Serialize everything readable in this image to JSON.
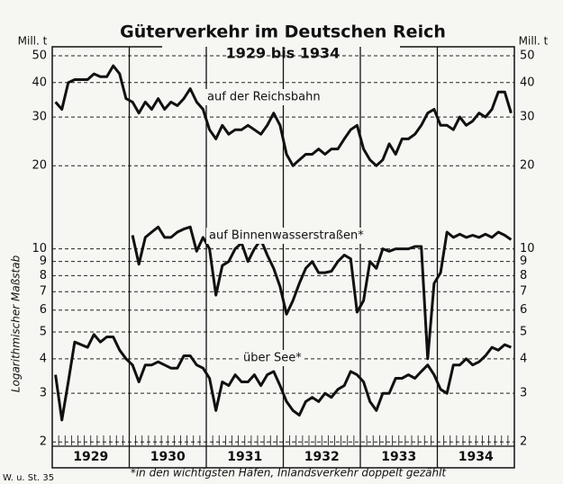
{
  "chart_data": {
    "type": "line",
    "title": "Güterverkehr im Deutschen Reich",
    "subtitle": "1929 bis 1934",
    "y_unit": "Mill. t",
    "y_label": "Logarithmischer Maßstab",
    "footnote": "*in den wichtigsten Häfen, Inlandsverkehr doppelt gezählt",
    "source": "W. u. St. 35",
    "year_labels": [
      "1929",
      "1930",
      "1931",
      "1932",
      "1933",
      "1934"
    ],
    "categories": [
      null,
      null,
      null,
      null,
      null,
      null,
      null,
      null,
      null,
      null,
      null,
      null,
      null,
      null,
      null,
      null,
      null,
      null,
      null,
      null,
      null,
      null,
      null,
      null,
      null,
      null,
      null,
      null,
      null,
      null,
      null,
      null,
      null,
      null,
      null,
      null,
      null,
      null,
      null,
      null,
      null,
      null,
      null,
      null,
      null,
      null,
      null,
      null,
      null,
      null,
      null,
      null,
      null,
      null,
      null,
      null,
      null,
      null,
      null,
      null,
      null,
      null,
      null,
      null,
      null,
      null,
      null,
      null,
      null,
      null,
      null,
      null
    ],
    "log_scale": true,
    "grid": true,
    "ylim": [
      1.93,
      50
    ],
    "yticks": [
      2,
      3,
      4,
      5,
      6,
      7,
      8,
      9,
      10,
      20,
      30,
      40,
      50
    ],
    "series": [
      {
        "name": "auf der Reichsbahn",
        "color": "#111111",
        "values": [
          34,
          32,
          40,
          41,
          41,
          41,
          43,
          42,
          42,
          46,
          43,
          35,
          34,
          31,
          34,
          32,
          35,
          32,
          34,
          33,
          35,
          38,
          34,
          32,
          27,
          25,
          28,
          26,
          27,
          27,
          28,
          27,
          26,
          28,
          31,
          28,
          22,
          20,
          21,
          22,
          22,
          23,
          22,
          23,
          23,
          25,
          27,
          28,
          23,
          21,
          20,
          21,
          24,
          22,
          25,
          25,
          26,
          28,
          31,
          32,
          28,
          28,
          27,
          30,
          28,
          29,
          31,
          30,
          32,
          37,
          37,
          31
        ]
      },
      {
        "name": "auf Binnenwasserstraßen*",
        "color": "#111111",
        "values": [
          null,
          null,
          null,
          null,
          null,
          null,
          null,
          null,
          null,
          null,
          null,
          null,
          11.2,
          8.8,
          11,
          11.5,
          12,
          11,
          11,
          11.5,
          11.8,
          12,
          9.8,
          11,
          10,
          6.8,
          8.7,
          9,
          10,
          10.5,
          9,
          10,
          10.8,
          9.5,
          8.5,
          7.3,
          5.8,
          6.5,
          7.5,
          8.5,
          9,
          8.2,
          8.2,
          8.3,
          9,
          9.5,
          9.2,
          5.9,
          6.5,
          9,
          8.5,
          10,
          9.8,
          10,
          10,
          10,
          10.2,
          10.2,
          4,
          7.5,
          8.2,
          11.5,
          11,
          11.3,
          11,
          11.2,
          11,
          11.3,
          11,
          11.5,
          11.2,
          10.8
        ]
      },
      {
        "name": "über See*",
        "color": "#111111",
        "values": [
          3.5,
          2.4,
          3.3,
          4.6,
          4.5,
          4.4,
          4.9,
          4.6,
          4.8,
          4.8,
          4.3,
          4,
          3.8,
          3.3,
          3.8,
          3.8,
          3.9,
          3.8,
          3.7,
          3.7,
          4.1,
          4.1,
          3.8,
          3.7,
          3.4,
          2.6,
          3.3,
          3.2,
          3.5,
          3.3,
          3.3,
          3.5,
          3.2,
          3.5,
          3.6,
          3.2,
          2.8,
          2.6,
          2.5,
          2.8,
          2.9,
          2.8,
          3,
          2.9,
          3.1,
          3.2,
          3.6,
          3.5,
          3.3,
          2.8,
          2.6,
          3,
          3,
          3.4,
          3.4,
          3.5,
          3.4,
          3.6,
          3.8,
          3.5,
          3.1,
          3,
          3.8,
          3.8,
          4,
          3.8,
          3.9,
          4.1,
          4.4,
          4.3,
          4.5,
          4.4
        ]
      }
    ]
  }
}
